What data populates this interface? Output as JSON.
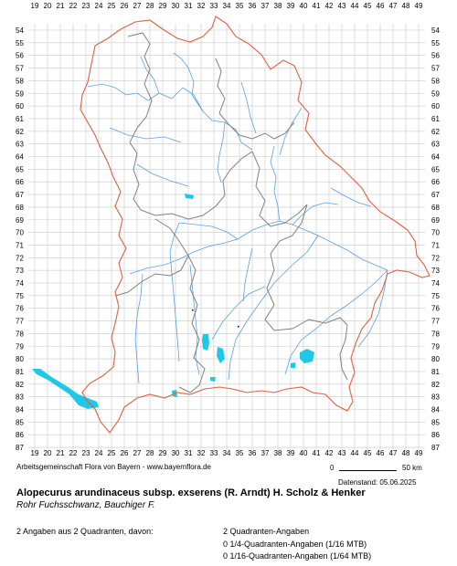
{
  "map": {
    "col_labels": [
      "19",
      "20",
      "21",
      "22",
      "23",
      "24",
      "25",
      "26",
      "27",
      "28",
      "29",
      "30",
      "31",
      "32",
      "33",
      "34",
      "35",
      "36",
      "37",
      "38",
      "39",
      "40",
      "41",
      "42",
      "43",
      "44",
      "45",
      "46",
      "47",
      "48",
      "49"
    ],
    "row_labels": [
      "54",
      "55",
      "56",
      "57",
      "58",
      "59",
      "60",
      "61",
      "62",
      "63",
      "64",
      "65",
      "66",
      "67",
      "68",
      "69",
      "70",
      "71",
      "72",
      "73",
      "74",
      "75",
      "76",
      "77",
      "78",
      "79",
      "80",
      "81",
      "82",
      "83",
      "84",
      "85",
      "86",
      "87"
    ],
    "colors": {
      "grid": "#c8c8c8",
      "border_outer": "#e06040",
      "border_regions": "#808080",
      "rivers": "#5aa0e0",
      "occurrence": "#1ec8e6"
    }
  },
  "credit": "Arbeitsgemeinschaft Flora von Bayern - www.bayernflora.de",
  "scale": {
    "start": "0",
    "end": "50 km"
  },
  "date": "Datenstand: 05.06.2025",
  "species": {
    "scientific": "Alopecurus arundinaceus subsp. exserens (R. Arndt) H. Scholz & Henker",
    "common": "Rohr Fuchsschwanz, Bauchiger F."
  },
  "summary": "2 Angaben aus 2 Quadranten, davon:",
  "stats": [
    "2 Quadranten-Angaben",
    "0 1/4-Quadranten-Angaben (1/16 MTB)",
    "0 1/16-Quadranten-Angaben (1/64 MTB)"
  ]
}
